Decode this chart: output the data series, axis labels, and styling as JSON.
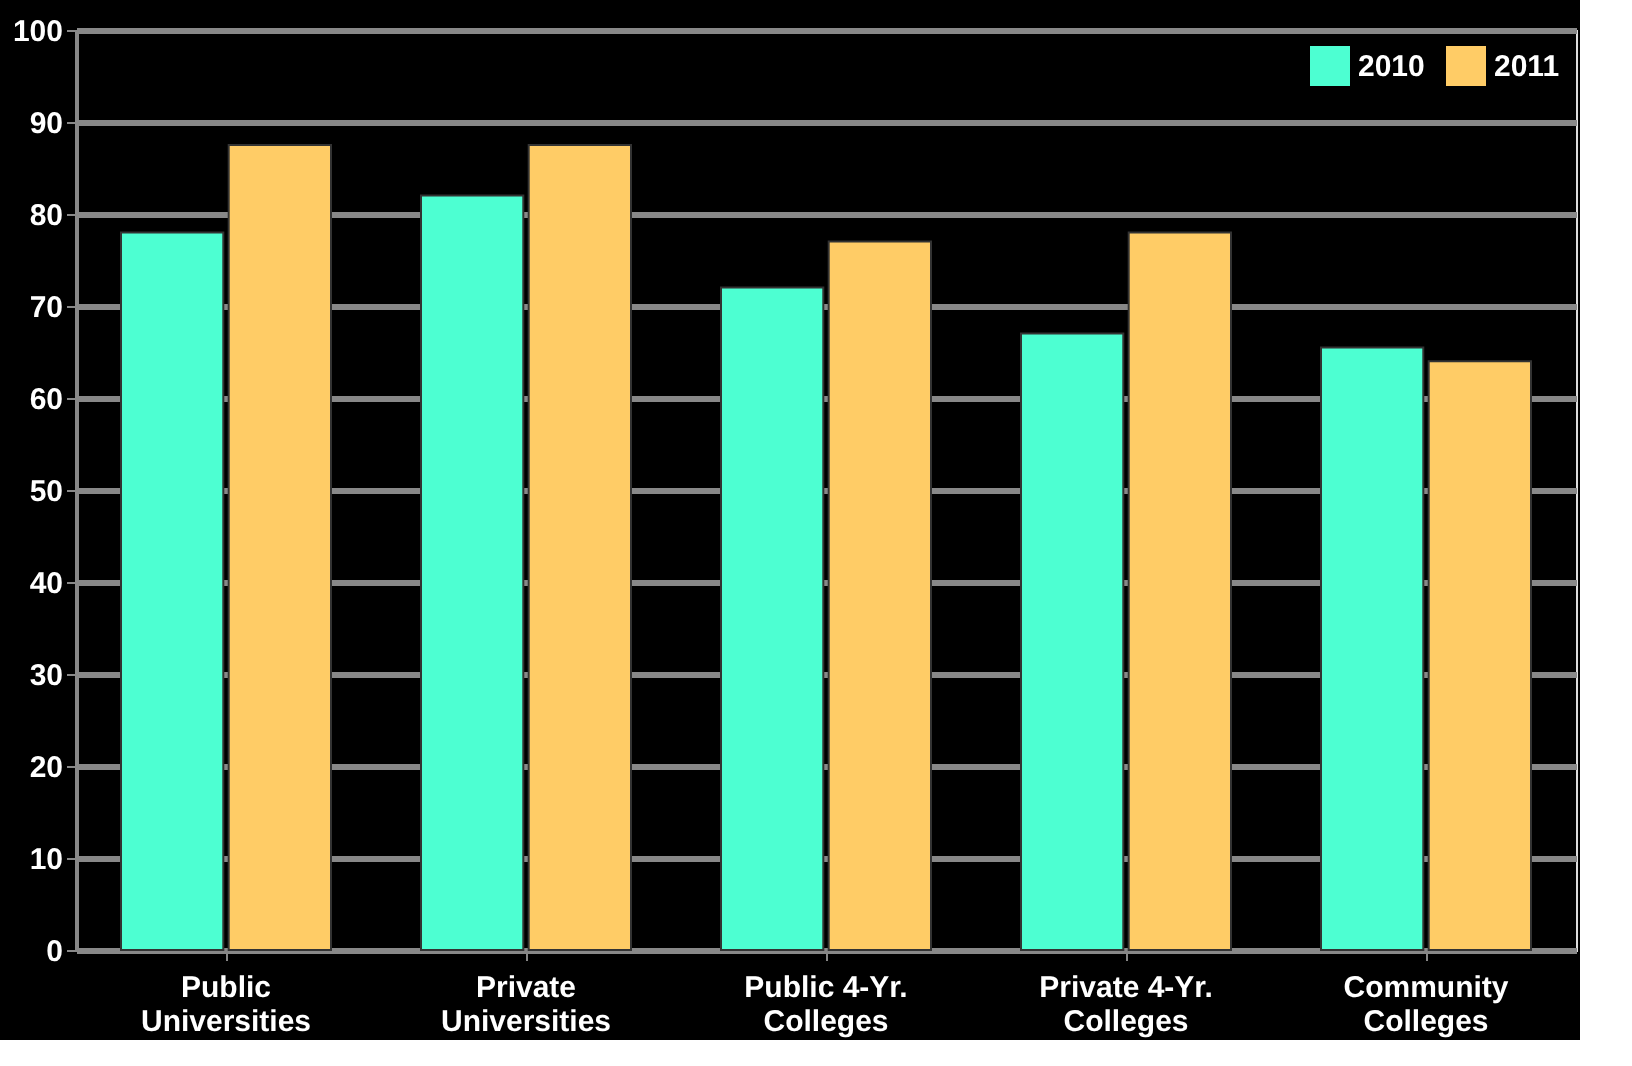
{
  "chart_data": {
    "type": "bar",
    "categories": [
      "Public\nUniversities",
      "Private\nUniversities",
      "Public 4-Yr.\nColleges",
      "Private 4-Yr.\nColleges",
      "Community\nColleges"
    ],
    "series": [
      {
        "name": "2010",
        "color": "#4dffd2",
        "values": [
          78,
          82,
          72,
          67,
          65.5
        ]
      },
      {
        "name": "2011",
        "color": "#ffcc66",
        "values": [
          87.5,
          87.5,
          77,
          78,
          64
        ]
      }
    ],
    "ylim": [
      0,
      100
    ],
    "yticks": [
      0,
      10,
      20,
      30,
      40,
      50,
      60,
      70,
      80,
      90,
      100
    ],
    "grid": "y",
    "legend": "top right"
  }
}
